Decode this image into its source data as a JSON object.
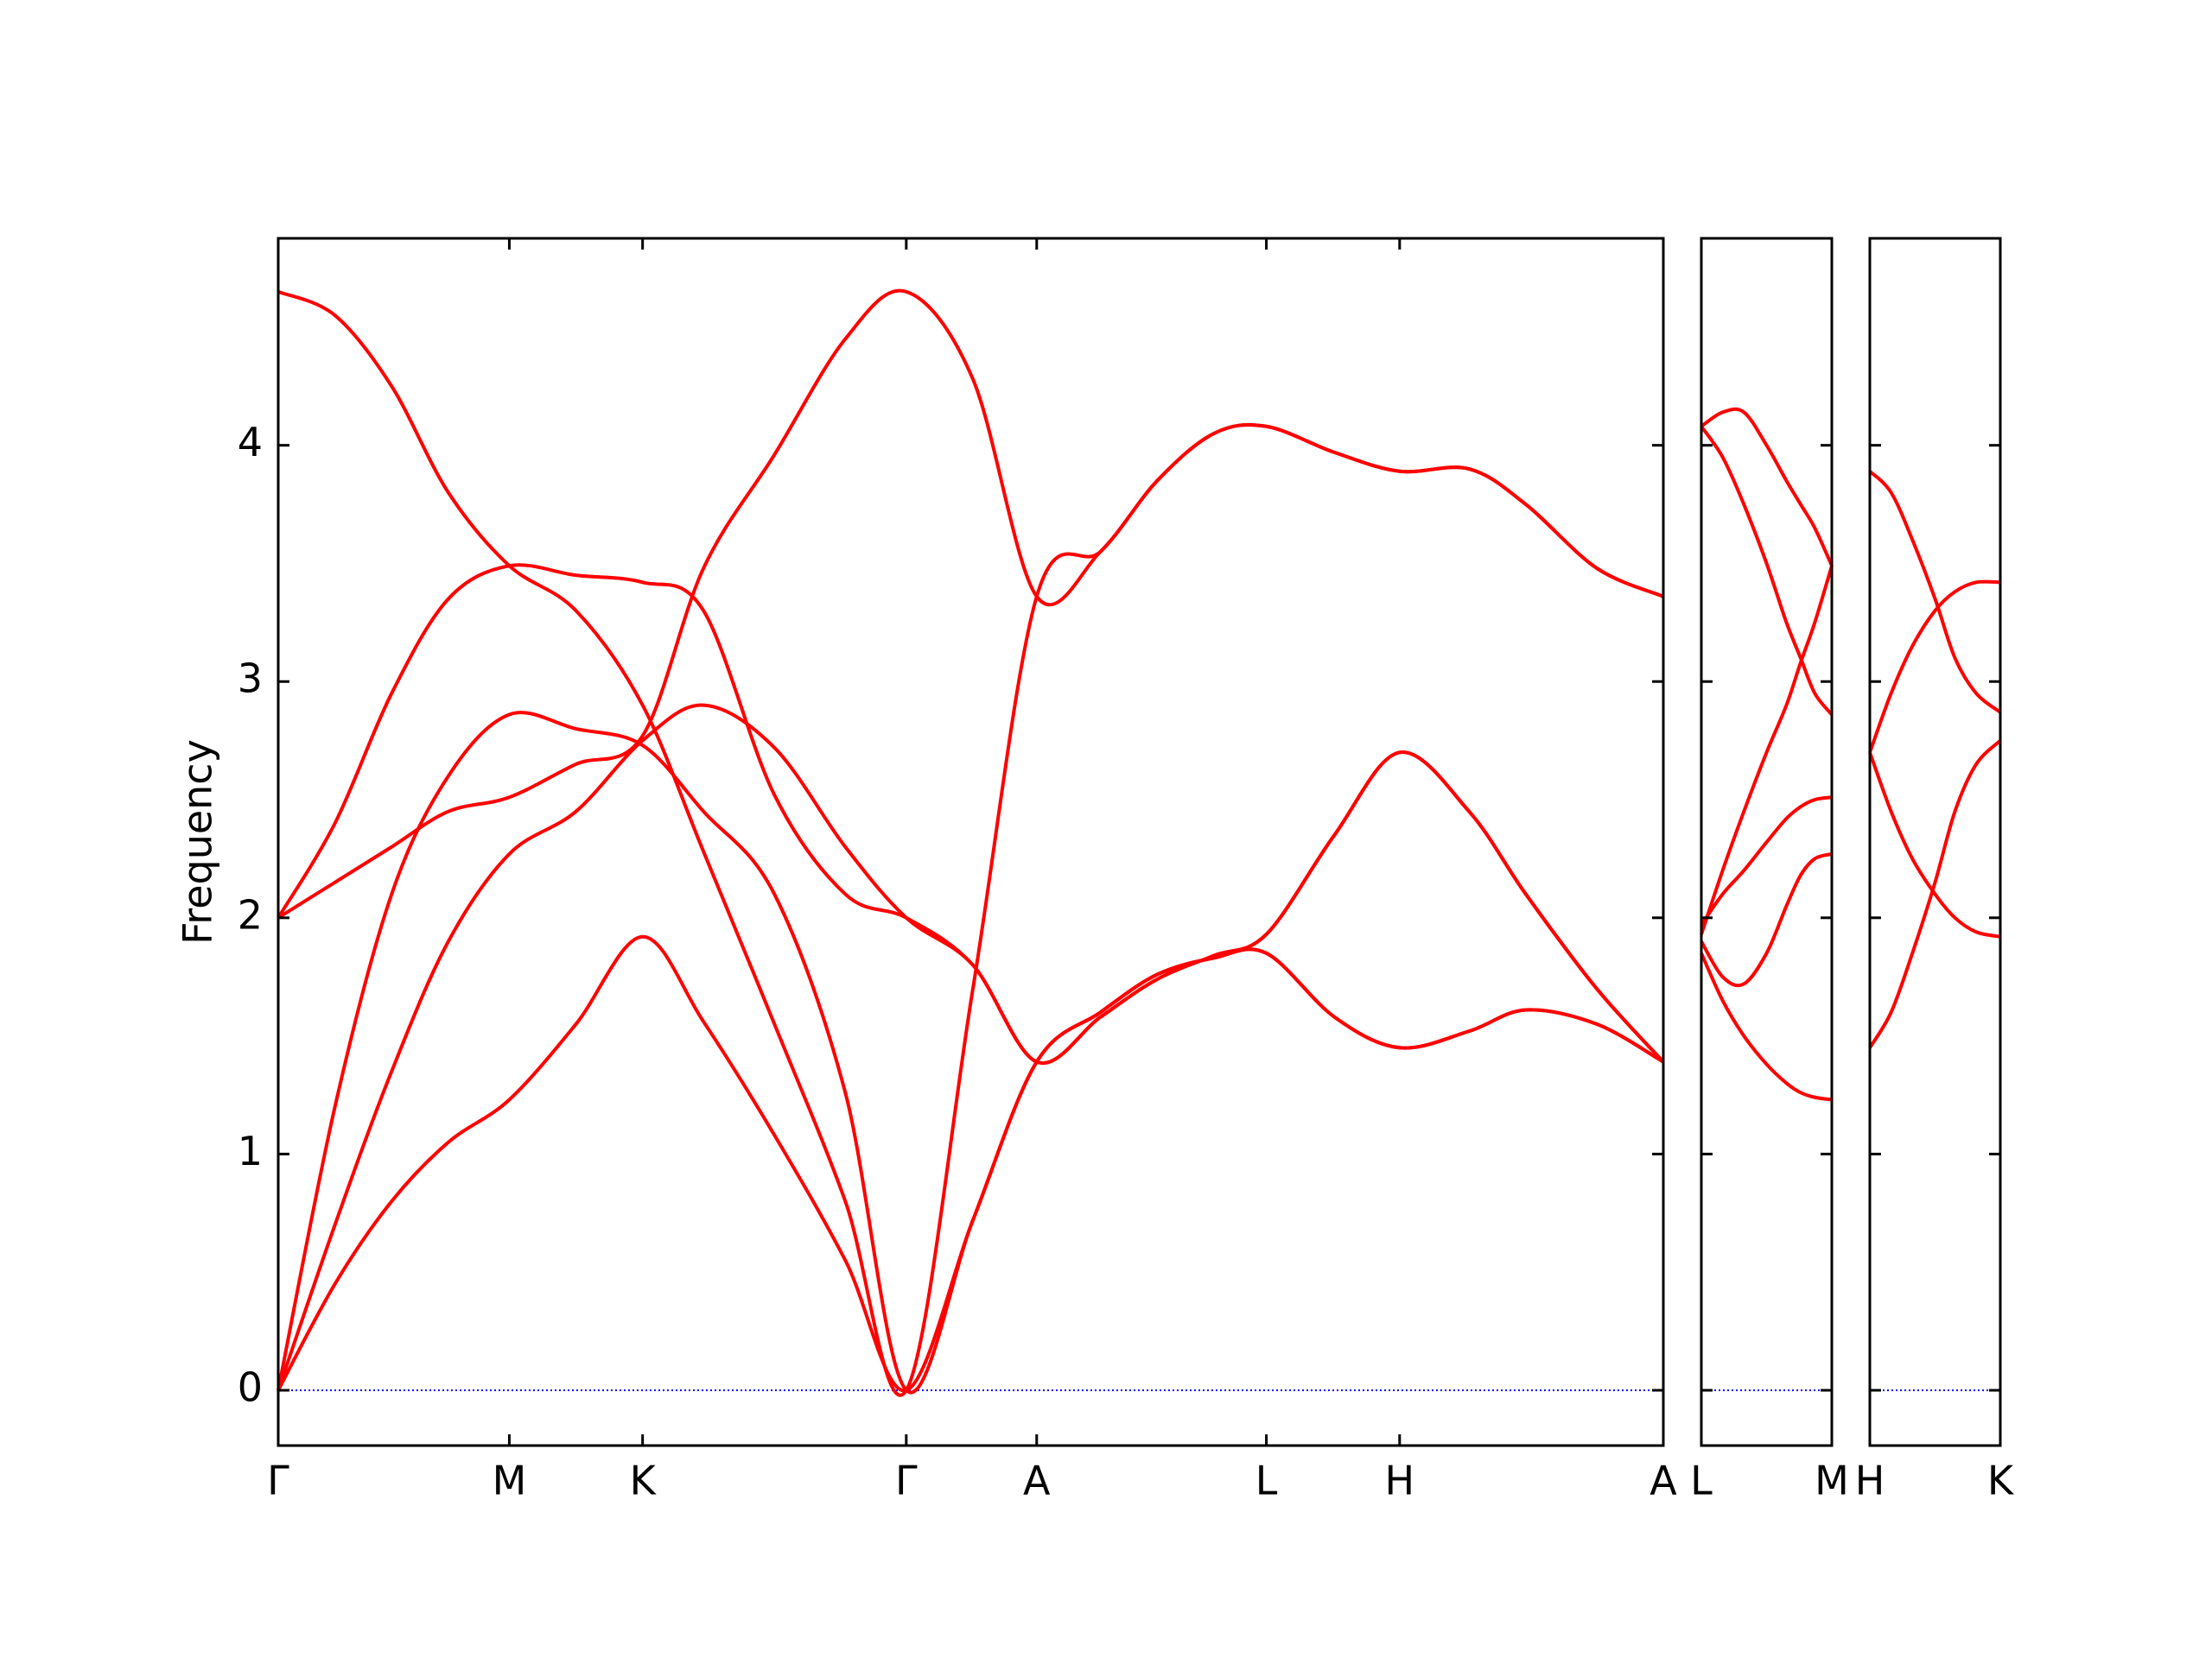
{
  "chart_data": [
    {
      "type": "line",
      "ylabel": "Frequency",
      "color": "#ff0000",
      "zero_line": true,
      "zero_line_color": "#0000ff",
      "yticklabels": true,
      "xlim": [
        0,
        0.977
      ],
      "ylim": [
        -0.234,
        4.876
      ],
      "yticks": [
        0,
        1,
        2,
        3,
        4
      ],
      "xticks": [
        {
          "value": 0,
          "label": "Γ"
        },
        {
          "value": 0.163,
          "label": "M"
        },
        {
          "value": 0.257,
          "label": "K"
        },
        {
          "value": 0.443,
          "label": "Γ"
        },
        {
          "value": 0.535,
          "label": "A"
        },
        {
          "value": 0.697,
          "label": "L"
        },
        {
          "value": 0.791,
          "label": "H"
        },
        {
          "value": 0.977,
          "label": "A"
        }
      ],
      "x": [
        0,
        0.04,
        0.08,
        0.12,
        0.163,
        0.21,
        0.257,
        0.3,
        0.35,
        0.4,
        0.443,
        0.49,
        0.535,
        0.58,
        0.62,
        0.66,
        0.697,
        0.745,
        0.791,
        0.84,
        0.88,
        0.93,
        0.977
      ],
      "series": [
        {
          "values": [
            0,
            0.45,
            0.8,
            1.05,
            1.23,
            1.55,
            1.92,
            1.56,
            1.08,
            0.55,
            0,
            0.72,
            1.39,
            1.6,
            1.76,
            1.83,
            1.85,
            1.58,
            1.45,
            1.52,
            1.61,
            1.55,
            1.39
          ]
        },
        {
          "values": [
            0,
            1.2,
            2.1,
            2.6,
            2.86,
            2.8,
            2.73,
            2.45,
            2.1,
            1.26,
            0,
            0.72,
            1.39,
            1.6,
            1.76,
            1.83,
            1.85,
            1.58,
            1.45,
            1.52,
            1.61,
            1.55,
            1.39
          ]
        },
        {
          "values": [
            0,
            0.7,
            1.35,
            1.9,
            2.27,
            2.45,
            2.75,
            2.9,
            2.72,
            2.3,
            2.0,
            1.8,
            1.39,
            1.58,
            1.74,
            1.84,
            1.93,
            2.35,
            2.7,
            2.45,
            2.1,
            1.7,
            1.39
          ]
        },
        {
          "values": [
            2.0,
            2.4,
            2.95,
            3.35,
            3.49,
            3.45,
            3.42,
            3.3,
            2.52,
            2.1,
            2.0,
            1.8,
            1.39,
            1.58,
            1.74,
            1.84,
            1.93,
            2.35,
            2.7,
            2.45,
            2.1,
            1.7,
            1.39
          ]
        },
        {
          "values": [
            2.0,
            2.15,
            2.3,
            2.45,
            2.51,
            2.65,
            2.77,
            3.48,
            3.96,
            4.45,
            4.65,
            4.28,
            3.36,
            3.55,
            3.85,
            4.05,
            4.08,
            3.97,
            3.89,
            3.9,
            3.75,
            3.48,
            3.36
          ]
        },
        {
          "values": [
            4.65,
            4.55,
            4.25,
            3.8,
            3.49,
            3.3,
            2.9,
            2.28,
            1.55,
            0.8,
            0,
            1.7,
            3.36,
            3.55,
            3.85,
            4.05,
            4.08,
            3.97,
            3.89,
            3.9,
            3.75,
            3.48,
            3.36
          ]
        }
      ]
    },
    {
      "type": "line",
      "color": "#ff0000",
      "zero_line": true,
      "zero_line_color": "#0000ff",
      "yticklabels": false,
      "xlim": [
        0,
        0.092
      ],
      "ylim": [
        -0.234,
        4.876
      ],
      "yticks": [
        0,
        1,
        2,
        3,
        4
      ],
      "xticks": [
        {
          "value": 0,
          "label": "L"
        },
        {
          "value": 0.092,
          "label": "M"
        }
      ],
      "x": [
        0,
        0.015,
        0.03,
        0.046,
        0.06,
        0.07,
        0.08,
        0.092
      ],
      "series": [
        {
          "values": [
            4.08,
            4.14,
            4.14,
            4.0,
            3.85,
            3.75,
            3.65,
            3.49
          ]
        },
        {
          "values": [
            4.08,
            3.95,
            3.75,
            3.5,
            3.25,
            3.1,
            2.95,
            2.86
          ]
        },
        {
          "values": [
            1.93,
            2.2,
            2.45,
            2.7,
            2.9,
            3.08,
            3.25,
            3.49
          ]
        },
        {
          "values": [
            1.97,
            2.1,
            2.2,
            2.32,
            2.42,
            2.47,
            2.5,
            2.51
          ]
        },
        {
          "values": [
            1.9,
            1.75,
            1.72,
            1.85,
            2.05,
            2.18,
            2.25,
            2.27
          ]
        },
        {
          "values": [
            1.85,
            1.65,
            1.5,
            1.38,
            1.3,
            1.26,
            1.24,
            1.23
          ]
        }
      ]
    },
    {
      "type": "line",
      "color": "#ff0000",
      "zero_line": true,
      "zero_line_color": "#0000ff",
      "yticklabels": false,
      "xlim": [
        0,
        0.092
      ],
      "ylim": [
        -0.234,
        4.876
      ],
      "yticks": [
        0,
        1,
        2,
        3,
        4
      ],
      "xticks": [
        {
          "value": 0,
          "label": "H"
        },
        {
          "value": 0.092,
          "label": "K"
        }
      ],
      "x": [
        0,
        0.015,
        0.03,
        0.046,
        0.06,
        0.075,
        0.092
      ],
      "series": [
        {
          "values": [
            3.89,
            3.8,
            3.6,
            3.35,
            3.1,
            2.95,
            2.87
          ]
        },
        {
          "values": [
            2.7,
            2.95,
            3.15,
            3.3,
            3.38,
            3.42,
            3.42
          ]
        },
        {
          "values": [
            2.7,
            2.45,
            2.25,
            2.1,
            2.0,
            1.94,
            1.92
          ]
        },
        {
          "values": [
            1.45,
            1.6,
            1.85,
            2.15,
            2.45,
            2.65,
            2.75
          ]
        }
      ]
    }
  ]
}
